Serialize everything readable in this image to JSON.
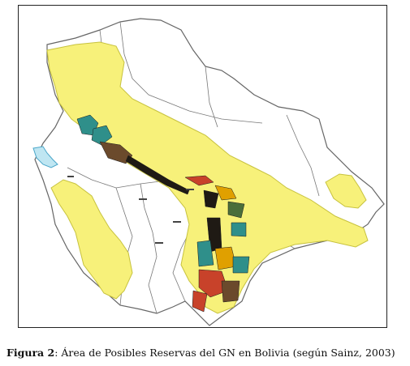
{
  "figure": {
    "label": "Figura 2",
    "separator": ":",
    "text": " Área de Posibles Reservas del GN en Bolivia (según Sainz, 2003)"
  },
  "map": {
    "country_fill": "#ffffff",
    "border_color": "#666666",
    "reserve_fill": "#f7f17a",
    "reserve_stroke": "#c7c23e",
    "field_colors": [
      "#2f8f8a",
      "#6b4a2c",
      "#1f1a14",
      "#c8422a",
      "#e0a000",
      "#4a6e3a"
    ]
  }
}
